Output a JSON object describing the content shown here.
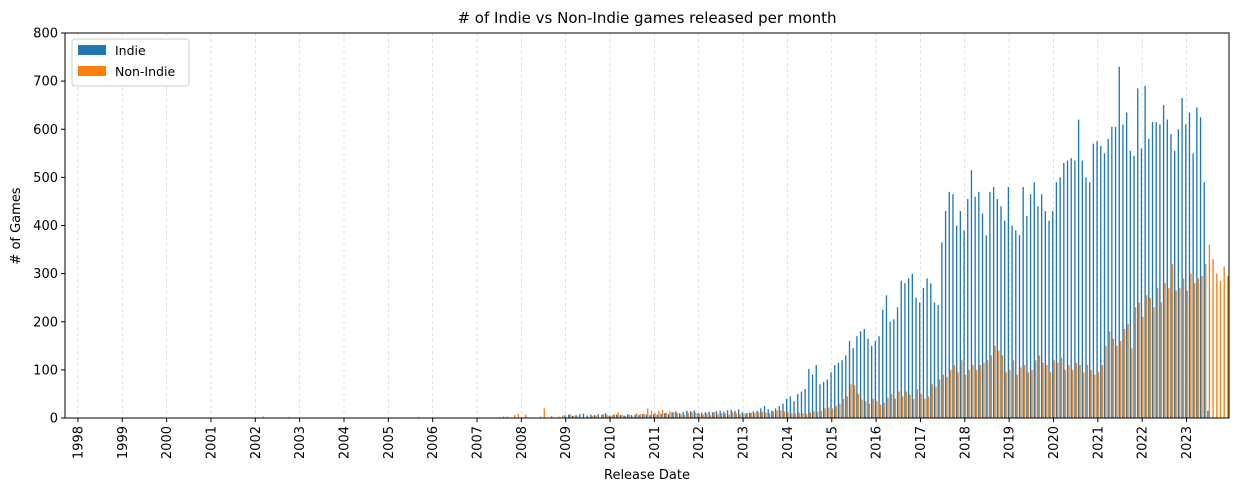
{
  "chart_data": {
    "type": "bar",
    "title": "# of Indie vs Non-Indie games released per month",
    "xlabel": "Release Date",
    "ylabel": "# of Games",
    "ylim": [
      0,
      800
    ],
    "yticks": [
      0,
      100,
      200,
      300,
      400,
      500,
      600,
      700,
      800
    ],
    "xticks": [
      "1998",
      "1999",
      "2000",
      "2001",
      "2002",
      "2003",
      "2004",
      "2005",
      "2006",
      "2007",
      "2008",
      "2009",
      "2010",
      "2011",
      "2012",
      "2013",
      "2014",
      "2015",
      "2016",
      "2017",
      "2018",
      "2019",
      "2020",
      "2021",
      "2022",
      "2023"
    ],
    "x_start": "1997-10",
    "x_end": "2023-12",
    "grid": "vertical dashed",
    "legend": "top-left",
    "colors": {
      "indie": "#1f77b4",
      "non_indie": "#ff7f0e"
    },
    "series": [
      {
        "name": "Indie",
        "values": [
          0,
          0,
          0,
          0,
          0,
          0,
          0,
          0,
          0,
          0,
          0,
          0,
          0,
          0,
          0,
          0,
          0,
          0,
          0,
          0,
          0,
          0,
          0,
          0,
          0,
          0,
          0,
          0,
          0,
          0,
          0,
          0,
          0,
          0,
          0,
          0,
          0,
          0,
          0,
          0,
          0,
          0,
          0,
          0,
          0,
          0,
          0,
          0,
          0,
          0,
          0,
          0,
          0,
          0,
          0,
          0,
          0,
          0,
          0,
          0,
          0,
          0,
          0,
          0,
          0,
          0,
          0,
          0,
          0,
          0,
          0,
          0,
          0,
          0,
          0,
          0,
          0,
          0,
          0,
          0,
          0,
          0,
          0,
          0,
          0,
          0,
          0,
          0,
          0,
          0,
          0,
          0,
          0,
          0,
          0,
          0,
          0,
          0,
          0,
          0,
          0,
          0,
          0,
          0,
          0,
          0,
          0,
          0,
          0,
          0,
          0,
          0,
          0,
          0,
          0,
          0,
          0,
          0,
          0,
          0,
          0,
          0,
          0,
          0,
          0,
          0,
          0,
          0,
          0,
          0,
          0,
          0,
          0,
          0,
          0,
          6,
          7,
          5,
          6,
          8,
          9,
          5,
          7,
          6,
          8,
          7,
          10,
          5,
          6,
          7,
          6,
          5,
          8,
          6,
          7,
          6,
          8,
          7,
          6,
          8,
          7,
          9,
          10,
          8,
          12,
          14,
          10,
          12,
          15,
          14,
          16,
          10,
          11,
          12,
          13,
          12,
          14,
          15,
          13,
          16,
          17,
          15,
          18,
          12,
          10,
          11,
          14,
          15,
          20,
          25,
          18,
          15,
          20,
          25,
          30,
          40,
          45,
          35,
          50,
          55,
          60,
          102,
          90,
          110,
          70,
          75,
          80,
          95,
          110,
          115,
          120,
          130,
          160,
          145,
          170,
          180,
          185,
          165,
          150,
          160,
          170,
          225,
          255,
          200,
          205,
          230,
          285,
          280,
          290,
          300,
          250,
          240,
          270,
          290,
          280,
          240,
          235,
          365,
          430,
          470,
          465,
          400,
          430,
          390,
          455,
          515,
          460,
          470,
          425,
          380,
          470,
          480,
          455,
          440,
          410,
          480,
          400,
          390,
          380,
          480,
          420,
          465,
          490,
          440,
          465,
          430,
          410,
          430,
          490,
          500,
          530,
          535,
          540,
          535,
          620,
          535,
          500,
          490,
          570,
          575,
          565,
          550,
          580,
          605,
          605,
          730,
          610,
          635,
          555,
          545,
          685,
          560,
          690,
          580,
          615,
          615,
          610,
          650,
          620,
          590,
          555,
          600,
          665,
          610,
          635,
          550,
          645,
          625,
          490,
          15
        ]
      },
      {
        "name": "Non-Indie",
        "values": [
          0,
          0,
          0,
          0,
          0,
          0,
          0,
          0,
          0,
          0,
          0,
          0,
          0,
          0,
          0,
          0,
          0,
          0,
          0,
          0,
          0,
          0,
          0,
          0,
          0,
          0,
          0,
          0,
          0,
          0,
          0,
          0,
          0,
          0,
          0,
          0,
          0,
          0,
          0,
          0,
          0,
          0,
          0,
          0,
          0,
          0,
          0,
          0,
          0,
          0,
          0,
          0,
          0,
          3,
          0,
          0,
          0,
          0,
          0,
          0,
          2,
          0,
          0,
          0,
          0,
          0,
          0,
          0,
          0,
          0,
          0,
          0,
          0,
          0,
          0,
          0,
          0,
          0,
          0,
          0,
          0,
          0,
          0,
          0,
          0,
          0,
          0,
          0,
          0,
          0,
          0,
          0,
          0,
          0,
          0,
          2,
          0,
          0,
          0,
          0,
          0,
          0,
          0,
          0,
          0,
          0,
          0,
          0,
          0,
          0,
          0,
          0,
          0,
          0,
          0,
          0,
          0,
          2,
          3,
          3,
          0,
          6,
          9,
          0,
          7,
          0,
          0,
          0,
          3,
          20,
          0,
          4,
          0,
          3,
          5,
          0,
          8,
          4,
          3,
          0,
          0,
          2,
          4,
          5,
          0,
          8,
          6,
          5,
          8,
          12,
          7,
          4,
          6,
          3,
          10,
          8,
          9,
          20,
          16,
          10,
          15,
          17,
          11,
          14,
          12,
          10,
          8,
          6,
          10,
          12,
          11,
          9,
          7,
          10,
          6,
          12,
          8,
          10,
          9,
          7,
          12,
          10,
          8,
          9,
          10,
          11,
          10,
          12,
          13,
          11,
          10,
          14,
          15,
          16,
          14,
          12,
          10,
          9,
          11,
          10,
          8,
          12,
          14,
          13,
          15,
          20,
          22,
          20,
          25,
          30,
          40,
          45,
          70,
          68,
          50,
          38,
          35,
          30,
          40,
          35,
          28,
          32,
          42,
          50,
          40,
          55,
          45,
          55,
          48,
          40,
          60,
          50,
          40,
          45,
          70,
          65,
          80,
          90,
          85,
          100,
          110,
          95,
          120,
          90,
          100,
          110,
          100,
          110,
          115,
          120,
          130,
          150,
          140,
          130,
          95,
          100,
          120,
          90,
          105,
          110,
          95,
          100,
          120,
          130,
          115,
          110,
          95,
          120,
          115,
          125,
          100,
          110,
          100,
          115,
          110,
          95,
          110,
          100,
          90,
          95,
          110,
          150,
          180,
          165,
          150,
          160,
          185,
          195,
          145,
          230,
          240,
          210,
          255,
          250,
          230,
          270,
          240,
          280,
          270,
          320,
          265,
          270,
          290,
          265,
          300,
          280,
          290,
          295,
          320,
          360,
          330,
          300,
          285,
          315,
          295,
          320,
          290,
          260,
          310,
          300,
          250,
          0
        ]
      }
    ]
  }
}
